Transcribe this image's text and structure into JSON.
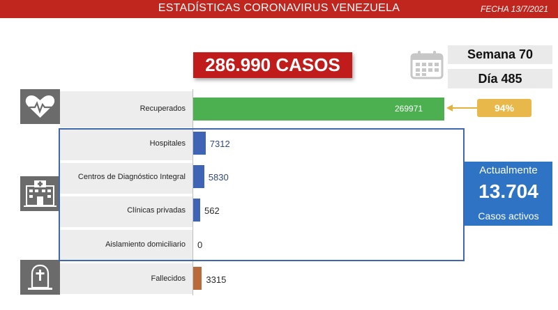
{
  "header": {
    "title": "ESTADÍSTICAS CORONAVIRUS VENEZUELA",
    "date": "FECHA 13/7/2021"
  },
  "total": "286.990 CASOS",
  "week": "Semana 70",
  "day": "Día 485",
  "recovered_pct": "94%",
  "active": {
    "label_top": "Actualmente",
    "value": "13.704",
    "label_bottom": "Casos activos"
  },
  "icons": {
    "calendar": "calendar-icon",
    "recovered": "heart-pulse-icon",
    "hospital": "hospital-building-icon",
    "deceased": "tombstone-cross-icon"
  },
  "colors": {
    "header": "#c0251e",
    "total": "#c11c1c",
    "recovered_bar": "#4caf50",
    "active_bars": "#3f63b5",
    "deceased_bar": "#b86a3c",
    "pct_badge": "#e8b84a",
    "active_box": "#2f74c4"
  },
  "chart_data": {
    "type": "bar",
    "orientation": "horizontal",
    "categories": [
      "Recuperados",
      "Hospitales",
      "Centros de Diagnóstico Integral",
      "Clínicas privadas",
      "Aislamiento domiciliario",
      "Fallecidos"
    ],
    "values": [
      269971,
      7312,
      5830,
      562,
      0,
      3315
    ],
    "value_labels": [
      "269971",
      "7312",
      "5830",
      "562",
      "0",
      "3315"
    ]
  }
}
